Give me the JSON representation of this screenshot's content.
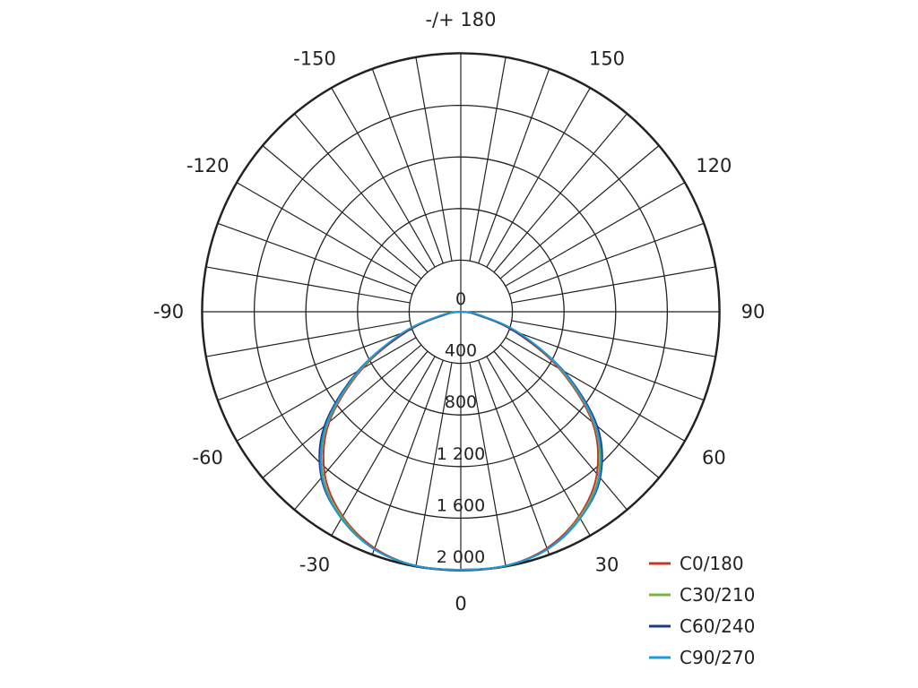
{
  "chart_data": {
    "type": "polar-line",
    "title": "",
    "angle_labels": [
      {
        "text": "-/+ 180",
        "deg": 180
      },
      {
        "text": "150",
        "deg": 150
      },
      {
        "text": "120",
        "deg": 120
      },
      {
        "text": "90",
        "deg": 90
      },
      {
        "text": "60",
        "deg": 60
      },
      {
        "text": "30",
        "deg": 30
      },
      {
        "text": "0",
        "deg": 0
      },
      {
        "text": "-30",
        "deg": -30
      },
      {
        "text": "-60",
        "deg": -60
      },
      {
        "text": "-90",
        "deg": -90
      },
      {
        "text": "-120",
        "deg": -120
      },
      {
        "text": "-150",
        "deg": -150
      }
    ],
    "radial_ticks": [
      0,
      400,
      800,
      1200,
      1600,
      2000
    ],
    "radial_tick_labels": [
      "0",
      "400",
      "800",
      "1 200",
      "1 600",
      "2 000"
    ],
    "radial_max": 2000,
    "angle_step_deg": 10,
    "grid": true,
    "legend_position": "bottom-right",
    "series": [
      {
        "name": "C0/180",
        "color": "#c0392b",
        "angles": [
          -90,
          -80,
          -70,
          -60,
          -50,
          -40,
          -30,
          -20,
          -10,
          0,
          10,
          20,
          30,
          40,
          50,
          60,
          70,
          80,
          90
        ],
        "values": [
          0,
          120,
          440,
          880,
          1330,
          1640,
          1830,
          1950,
          2000,
          2000,
          2000,
          1950,
          1830,
          1640,
          1330,
          880,
          440,
          120,
          0
        ]
      },
      {
        "name": "C30/210",
        "color": "#7cb342",
        "angles": [
          -90,
          -80,
          -70,
          -60,
          -50,
          -40,
          -30,
          -20,
          -10,
          0,
          10,
          20,
          30,
          40,
          50,
          60,
          70,
          80,
          90
        ],
        "values": [
          0,
          140,
          470,
          900,
          1350,
          1660,
          1840,
          1960,
          2000,
          2000,
          2000,
          1960,
          1840,
          1660,
          1350,
          900,
          470,
          140,
          0
        ]
      },
      {
        "name": "C60/240",
        "color": "#1f3a8a",
        "angles": [
          -90,
          -80,
          -70,
          -60,
          -50,
          -40,
          -30,
          -20,
          -10,
          0,
          10,
          20,
          30,
          40,
          50,
          60,
          70,
          80,
          90
        ],
        "values": [
          0,
          130,
          460,
          920,
          1380,
          1680,
          1850,
          1960,
          2000,
          2000,
          2000,
          1960,
          1850,
          1680,
          1380,
          920,
          460,
          130,
          0
        ]
      },
      {
        "name": "C90/270",
        "color": "#1e9bd7",
        "angles": [
          -90,
          -80,
          -70,
          -60,
          -50,
          -40,
          -30,
          -20,
          -10,
          0,
          10,
          20,
          30,
          40,
          50,
          60,
          70,
          80,
          90
        ],
        "values": [
          0,
          150,
          480,
          910,
          1360,
          1670,
          1850,
          1960,
          2000,
          2000,
          2000,
          1960,
          1850,
          1670,
          1360,
          910,
          480,
          150,
          0
        ]
      }
    ]
  }
}
